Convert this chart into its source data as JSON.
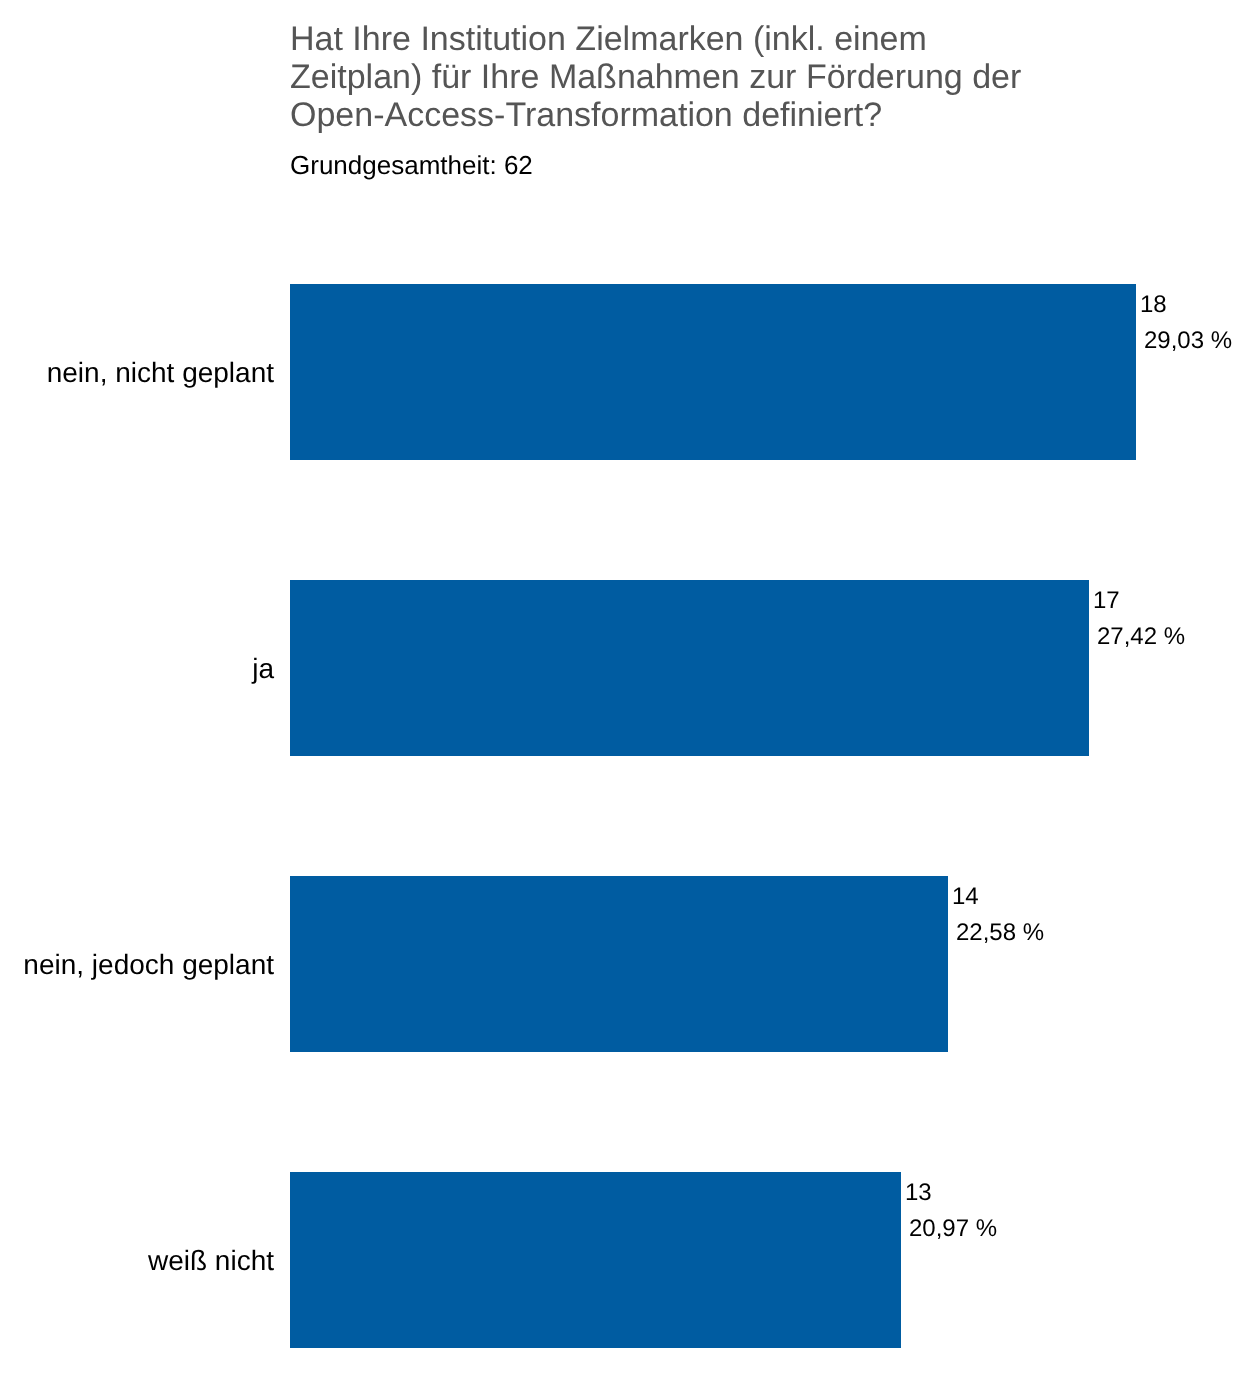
{
  "chart_data": {
    "type": "bar",
    "orientation": "horizontal",
    "title": "Hat Ihre Institution Zielmarken (inkl. einem Zeitplan) für Ihre Maßnahmen zur Förderung der Open-Access-Transformation definiert?",
    "subtitle": "Grundgesamtheit: 62",
    "categories": [
      "nein, nicht geplant",
      "ja",
      "nein, jedoch geplant",
      "weiß nicht"
    ],
    "values": [
      18,
      17,
      14,
      13
    ],
    "color": "#005ca1",
    "value_labels": [
      "18\n29,03 %",
      "17\n27,42 %",
      "14\n22,58 %",
      "13\n20,97 %"
    ],
    "grid": false,
    "legend": false
  }
}
